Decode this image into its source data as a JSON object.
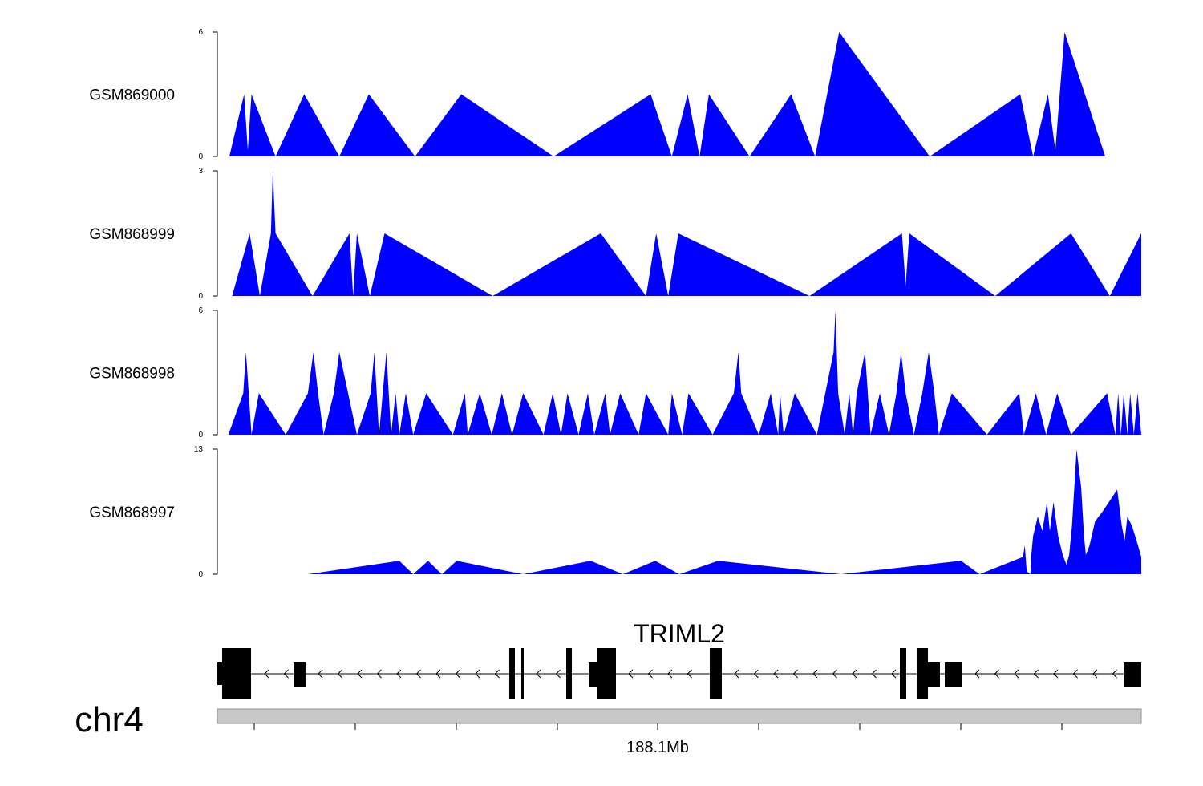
{
  "chart_data": {
    "type": "area",
    "chromosome": "chr4",
    "gene": "TRIML2",
    "position_label": "188.1Mb",
    "tracks": [
      {
        "name": "GSM869000",
        "ymax": 6,
        "ylim": [
          0,
          6
        ],
        "points": [
          [
            0.013,
            0
          ],
          [
            0.029,
            3
          ],
          [
            0.033,
            0.3
          ],
          [
            0.037,
            3
          ],
          [
            0.063,
            0
          ],
          [
            0.094,
            3
          ],
          [
            0.132,
            0
          ],
          [
            0.164,
            3
          ],
          [
            0.214,
            0
          ],
          [
            0.264,
            3
          ],
          [
            0.364,
            0
          ],
          [
            0.469,
            3
          ],
          [
            0.492,
            0
          ],
          [
            0.509,
            3
          ],
          [
            0.522,
            0
          ],
          [
            0.532,
            3
          ],
          [
            0.576,
            0
          ],
          [
            0.621,
            3
          ],
          [
            0.647,
            0
          ],
          [
            0.673,
            6
          ],
          [
            0.771,
            0
          ],
          [
            0.869,
            3
          ],
          [
            0.883,
            0
          ],
          [
            0.899,
            3
          ],
          [
            0.907,
            0.3
          ],
          [
            0.917,
            6
          ],
          [
            0.961,
            0
          ]
        ]
      },
      {
        "name": "GSM868999",
        "ymax": 3,
        "ylim": [
          0,
          3
        ],
        "points": [
          [
            0.016,
            0
          ],
          [
            0.035,
            1.5
          ],
          [
            0.046,
            0
          ],
          [
            0.058,
            1.5
          ],
          [
            0.06,
            3
          ],
          [
            0.063,
            1.5
          ],
          [
            0.103,
            0
          ],
          [
            0.143,
            1.5
          ],
          [
            0.147,
            0
          ],
          [
            0.151,
            1.5
          ],
          [
            0.165,
            0
          ],
          [
            0.181,
            1.5
          ],
          [
            0.298,
            0
          ],
          [
            0.415,
            1.5
          ],
          [
            0.464,
            0
          ],
          [
            0.475,
            1.5
          ],
          [
            0.488,
            0
          ],
          [
            0.499,
            1.5
          ],
          [
            0.641,
            0
          ],
          [
            0.741,
            1.5
          ],
          [
            0.745,
            0.25
          ],
          [
            0.749,
            1.5
          ],
          [
            0.842,
            0
          ],
          [
            0.924,
            1.5
          ],
          [
            0.966,
            0
          ],
          [
            1.0,
            1.5
          ]
        ]
      },
      {
        "name": "GSM868998",
        "ymax": 6,
        "ylim": [
          0,
          6
        ],
        "points": [
          [
            0.012,
            0
          ],
          [
            0.028,
            2
          ],
          [
            0.031,
            4
          ],
          [
            0.037,
            0
          ],
          [
            0.045,
            2
          ],
          [
            0.074,
            0
          ],
          [
            0.098,
            2
          ],
          [
            0.104,
            4
          ],
          [
            0.109,
            2
          ],
          [
            0.115,
            0
          ],
          [
            0.126,
            2
          ],
          [
            0.132,
            4
          ],
          [
            0.151,
            0
          ],
          [
            0.166,
            2
          ],
          [
            0.17,
            4
          ],
          [
            0.175,
            0
          ],
          [
            0.179,
            2
          ],
          [
            0.183,
            4
          ],
          [
            0.188,
            0
          ],
          [
            0.193,
            2
          ],
          [
            0.197,
            0
          ],
          [
            0.204,
            2
          ],
          [
            0.212,
            0
          ],
          [
            0.226,
            2
          ],
          [
            0.255,
            0
          ],
          [
            0.268,
            2
          ],
          [
            0.271,
            0
          ],
          [
            0.284,
            2
          ],
          [
            0.297,
            0
          ],
          [
            0.308,
            2
          ],
          [
            0.319,
            0
          ],
          [
            0.331,
            2
          ],
          [
            0.353,
            0
          ],
          [
            0.363,
            2
          ],
          [
            0.372,
            0
          ],
          [
            0.379,
            2
          ],
          [
            0.391,
            0
          ],
          [
            0.401,
            2
          ],
          [
            0.408,
            0
          ],
          [
            0.42,
            2
          ],
          [
            0.425,
            0
          ],
          [
            0.436,
            2
          ],
          [
            0.456,
            0
          ],
          [
            0.464,
            2
          ],
          [
            0.488,
            0
          ],
          [
            0.492,
            2
          ],
          [
            0.503,
            0
          ],
          [
            0.51,
            2
          ],
          [
            0.536,
            0
          ],
          [
            0.559,
            2
          ],
          [
            0.564,
            4
          ],
          [
            0.567,
            2
          ],
          [
            0.586,
            0
          ],
          [
            0.599,
            2
          ],
          [
            0.607,
            0
          ],
          [
            0.609,
            2
          ],
          [
            0.613,
            0
          ],
          [
            0.625,
            2
          ],
          [
            0.649,
            0
          ],
          [
            0.667,
            4
          ],
          [
            0.669,
            6
          ],
          [
            0.672,
            2
          ],
          [
            0.679,
            0
          ],
          [
            0.684,
            2
          ],
          [
            0.688,
            0
          ],
          [
            0.692,
            2
          ],
          [
            0.701,
            4
          ],
          [
            0.707,
            0
          ],
          [
            0.717,
            2
          ],
          [
            0.727,
            0
          ],
          [
            0.735,
            2
          ],
          [
            0.74,
            4
          ],
          [
            0.745,
            2
          ],
          [
            0.754,
            0
          ],
          [
            0.763,
            2
          ],
          [
            0.77,
            4
          ],
          [
            0.776,
            2
          ],
          [
            0.781,
            0
          ],
          [
            0.795,
            2
          ],
          [
            0.833,
            0
          ],
          [
            0.868,
            2
          ],
          [
            0.873,
            0
          ],
          [
            0.886,
            2
          ],
          [
            0.897,
            0
          ],
          [
            0.909,
            2
          ],
          [
            0.924,
            0
          ],
          [
            0.963,
            2
          ],
          [
            0.972,
            0
          ],
          [
            0.975,
            2
          ],
          [
            0.978,
            0
          ],
          [
            0.981,
            2
          ],
          [
            0.985,
            0
          ],
          [
            0.988,
            2
          ],
          [
            0.992,
            0
          ],
          [
            0.996,
            2
          ],
          [
            1.0,
            0
          ]
        ]
      },
      {
        "name": "GSM868997",
        "ymax": 13,
        "ylim": [
          0,
          13
        ],
        "points": [
          [
            0.098,
            0
          ],
          [
            0.197,
            1.4
          ],
          [
            0.212,
            0
          ],
          [
            0.228,
            1.4
          ],
          [
            0.243,
            0
          ],
          [
            0.259,
            1.4
          ],
          [
            0.331,
            0
          ],
          [
            0.404,
            1.4
          ],
          [
            0.439,
            0
          ],
          [
            0.474,
            1.4
          ],
          [
            0.5,
            0
          ],
          [
            0.542,
            1.4
          ],
          [
            0.675,
            0
          ],
          [
            0.805,
            1.4
          ],
          [
            0.825,
            0
          ],
          [
            0.872,
            1.8
          ],
          [
            0.874,
            3
          ],
          [
            0.876,
            0.3
          ],
          [
            0.88,
            0
          ],
          [
            0.881,
            2
          ],
          [
            0.883,
            4
          ],
          [
            0.888,
            6
          ],
          [
            0.893,
            4.5
          ],
          [
            0.898,
            7.5
          ],
          [
            0.901,
            4.5
          ],
          [
            0.905,
            7.5
          ],
          [
            0.91,
            4
          ],
          [
            0.915,
            2
          ],
          [
            0.919,
            1
          ],
          [
            0.922,
            2
          ],
          [
            0.925,
            5
          ],
          [
            0.93,
            13
          ],
          [
            0.935,
            9
          ],
          [
            0.938,
            4
          ],
          [
            0.94,
            2
          ],
          [
            0.944,
            3
          ],
          [
            0.95,
            5.5
          ],
          [
            0.958,
            6.5
          ],
          [
            0.965,
            7.5
          ],
          [
            0.974,
            8.8
          ],
          [
            0.979,
            5
          ],
          [
            0.982,
            3.5
          ],
          [
            0.985,
            6
          ],
          [
            0.99,
            5
          ],
          [
            0.995,
            3.5
          ],
          [
            1.0,
            1.8
          ]
        ]
      }
    ]
  }
}
